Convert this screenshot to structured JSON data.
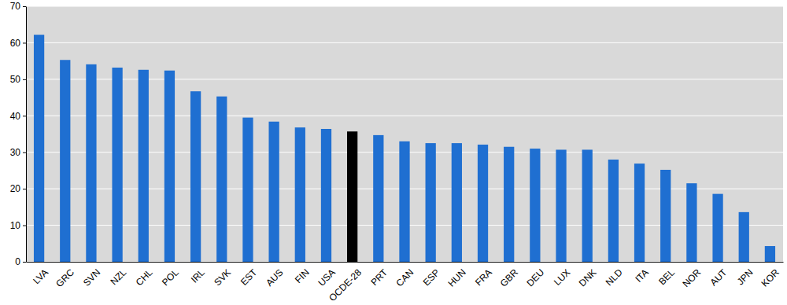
{
  "chart_data": {
    "type": "bar",
    "categories": [
      "LVA",
      "GRC",
      "SVN",
      "NZL",
      "CHL",
      "POL",
      "IRL",
      "SVK",
      "EST",
      "AUS",
      "FIN",
      "USA",
      "OCDE-28",
      "PRT",
      "CAN",
      "ESP",
      "HUN",
      "FRA",
      "GBR",
      "DEU",
      "LUX",
      "DNK",
      "NLD",
      "ITA",
      "BEL",
      "NOR",
      "AUT",
      "JPN",
      "KOR"
    ],
    "values": [
      62.2,
      55.3,
      54.1,
      53.2,
      52.6,
      52.4,
      46.7,
      45.3,
      39.5,
      38.4,
      36.8,
      36.4,
      35.7,
      34.7,
      33.0,
      32.5,
      32.5,
      32.1,
      31.5,
      31.0,
      30.7,
      30.7,
      28.0,
      26.9,
      25.2,
      21.5,
      18.6,
      13.6,
      4.3
    ],
    "colors": [
      "#1f6fd1",
      "#1f6fd1",
      "#1f6fd1",
      "#1f6fd1",
      "#1f6fd1",
      "#1f6fd1",
      "#1f6fd1",
      "#1f6fd1",
      "#1f6fd1",
      "#1f6fd1",
      "#1f6fd1",
      "#1f6fd1",
      "#000000",
      "#1f6fd1",
      "#1f6fd1",
      "#1f6fd1",
      "#1f6fd1",
      "#1f6fd1",
      "#1f6fd1",
      "#1f6fd1",
      "#1f6fd1",
      "#1f6fd1",
      "#1f6fd1",
      "#1f6fd1",
      "#1f6fd1",
      "#1f6fd1",
      "#1f6fd1",
      "#1f6fd1",
      "#1f6fd1"
    ],
    "ylim": [
      0,
      70
    ],
    "yticks": [
      0,
      10,
      20,
      30,
      40,
      50,
      60,
      70
    ],
    "grid": true
  }
}
